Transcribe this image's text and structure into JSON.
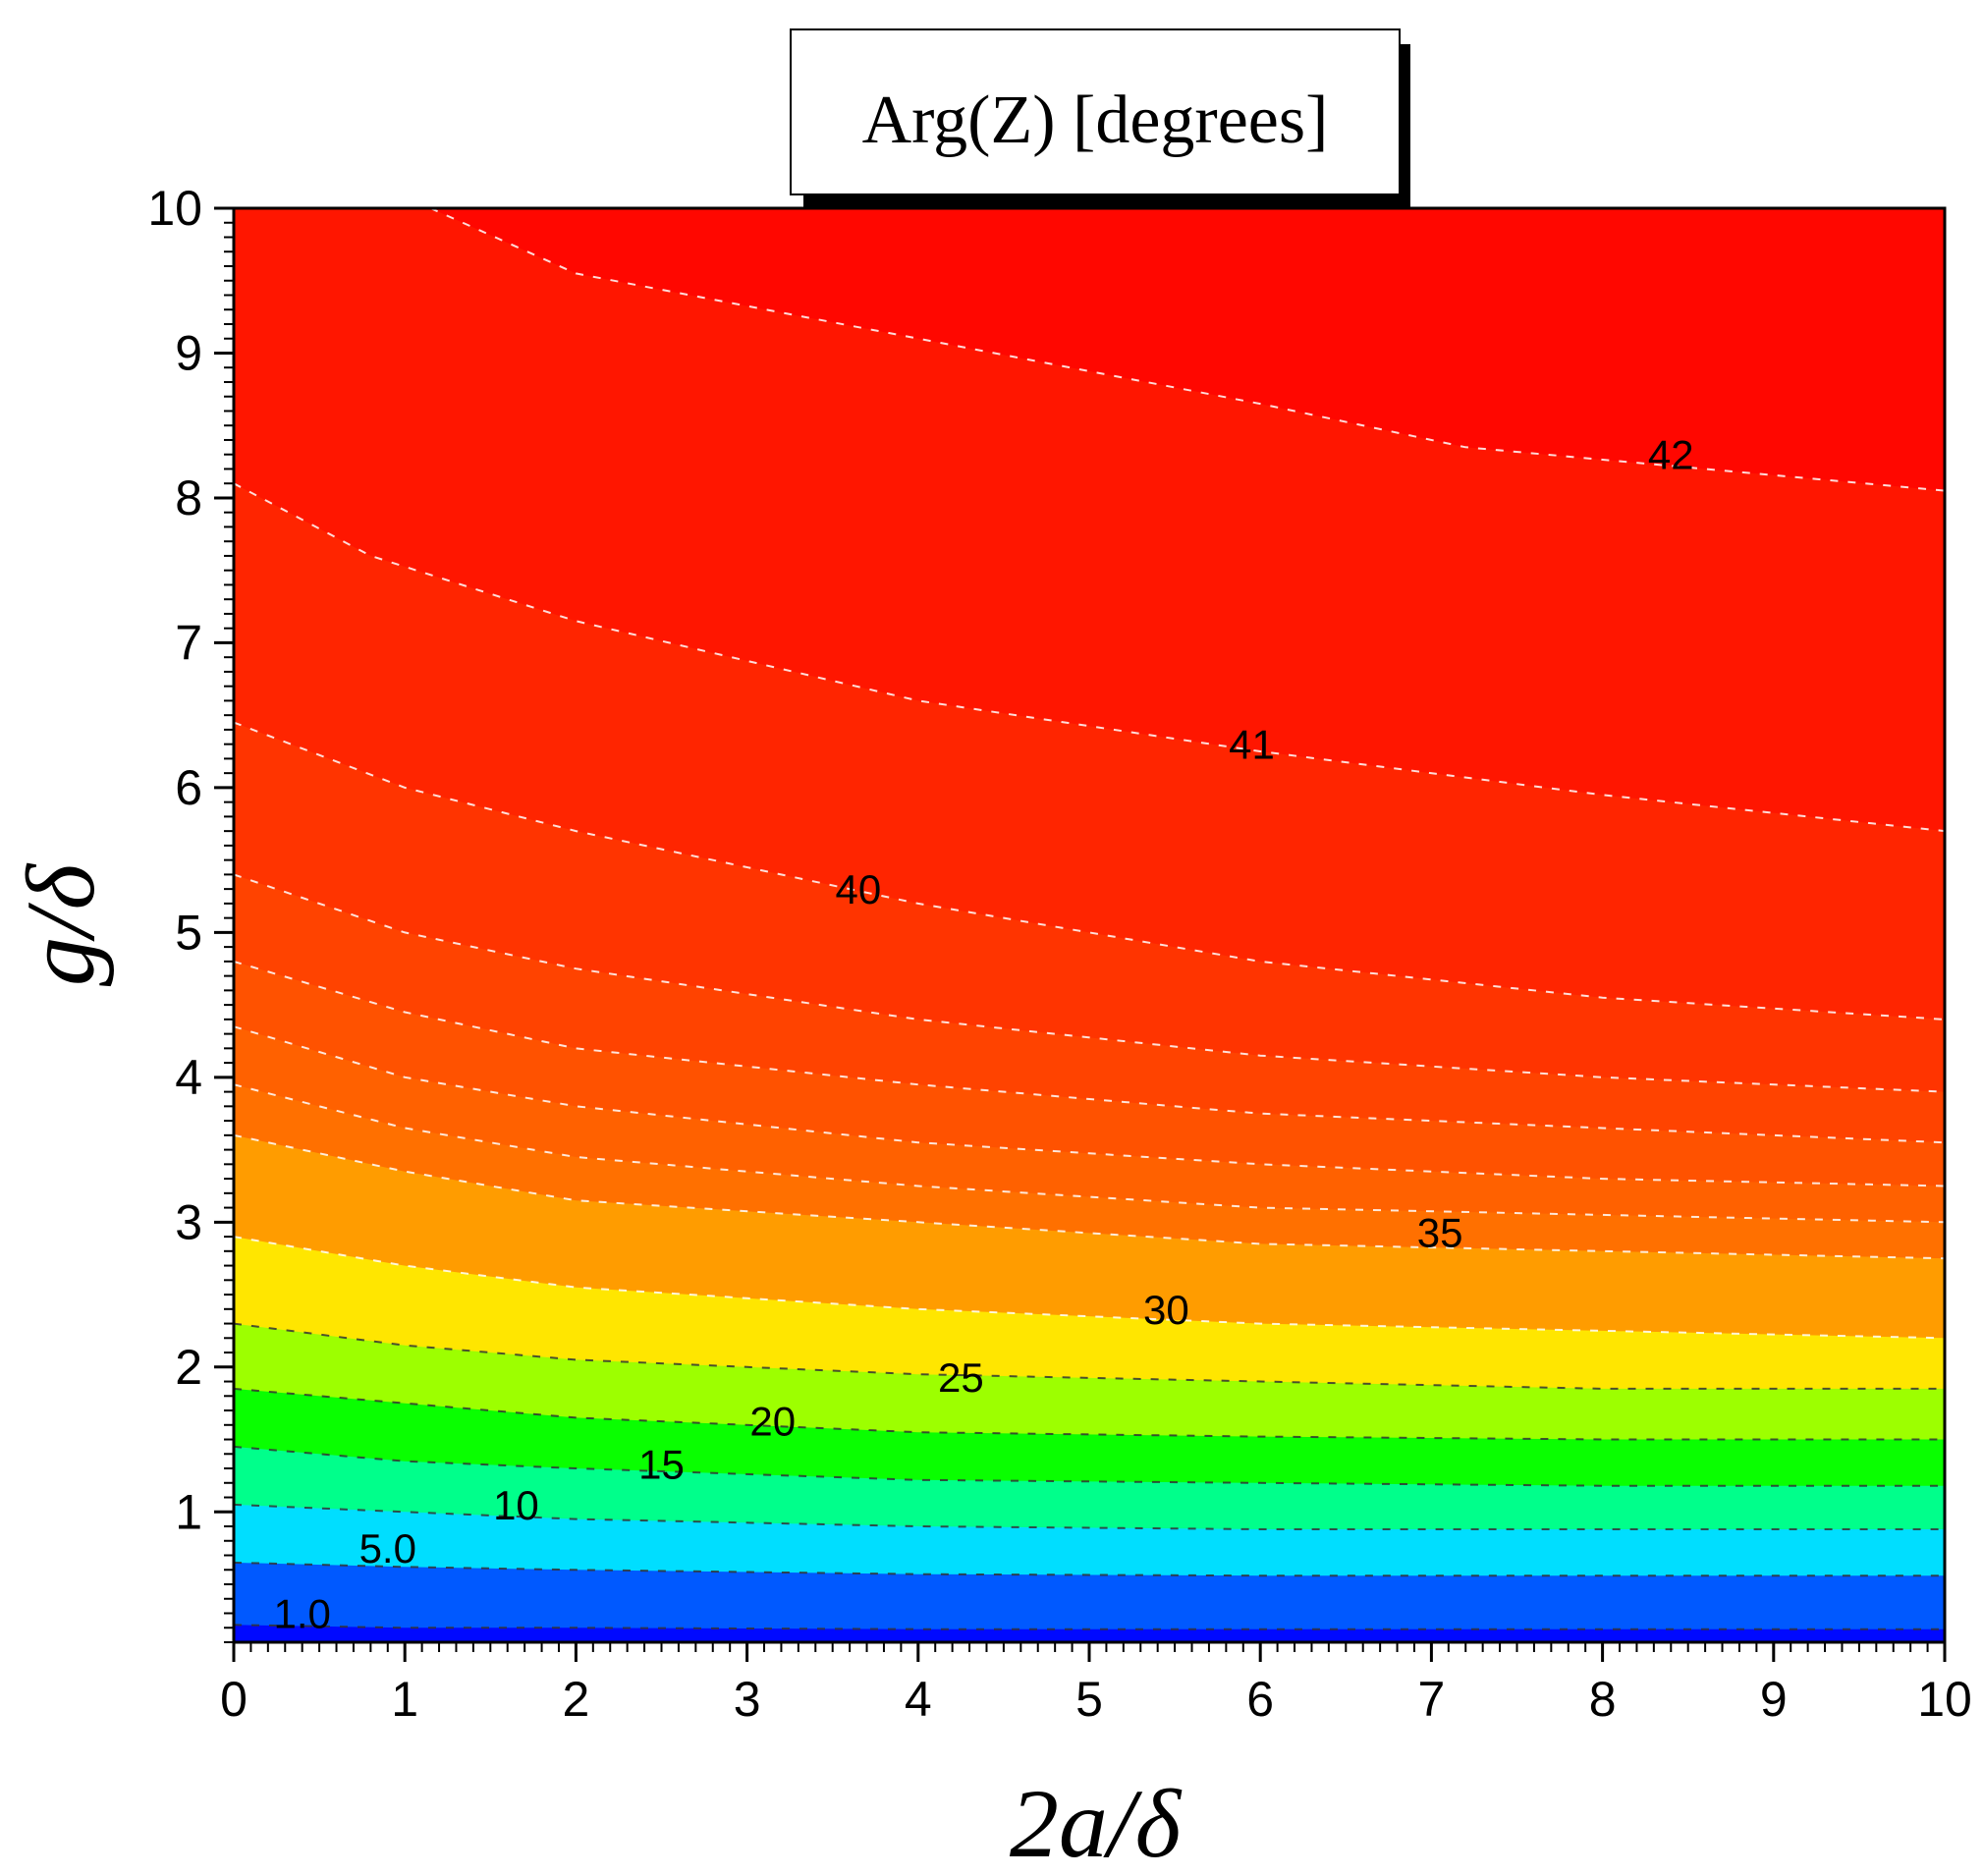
{
  "chart_data": {
    "type": "heatmap",
    "title": "Arg(Z) [degrees]",
    "xlabel": "2a/δ",
    "ylabel": "g/δ",
    "xlim": [
      0,
      10
    ],
    "ylim": [
      0.1,
      10
    ],
    "x_ticks": [
      "0",
      "1",
      "2",
      "3",
      "4",
      "5",
      "6",
      "7",
      "8",
      "9",
      "10"
    ],
    "y_ticks": [
      "1",
      "2",
      "3",
      "4",
      "5",
      "6",
      "7",
      "8",
      "9",
      "10"
    ],
    "colormap": [
      "#0000ff",
      "#00ffff",
      "#00ff00",
      "#ffff00",
      "#ff8000",
      "#ff0000"
    ],
    "value_range": [
      0,
      43
    ],
    "contour_labels": [
      {
        "text": "1.0",
        "x": 0.4,
        "y": 0.3
      },
      {
        "text": "5.0",
        "x": 0.9,
        "y": 0.75
      },
      {
        "text": "10",
        "x": 1.65,
        "y": 1.05
      },
      {
        "text": "15",
        "x": 2.5,
        "y": 1.33
      },
      {
        "text": "20",
        "x": 3.15,
        "y": 1.63
      },
      {
        "text": "25",
        "x": 4.25,
        "y": 1.93
      },
      {
        "text": "30",
        "x": 5.45,
        "y": 2.4
      },
      {
        "text": "35",
        "x": 7.05,
        "y": 2.93
      },
      {
        "text": "40",
        "x": 3.65,
        "y": 5.3
      },
      {
        "text": "41",
        "x": 5.95,
        "y": 6.3
      },
      {
        "text": "42",
        "x": 8.4,
        "y": 8.3
      }
    ],
    "contour_lines": [
      {
        "value": 42,
        "points": [
          [
            1.15,
            10
          ],
          [
            2.0,
            9.55
          ],
          [
            4.0,
            9.1
          ],
          [
            6.0,
            8.65
          ],
          [
            7.2,
            8.35
          ],
          [
            10.0,
            8.05
          ]
        ]
      },
      {
        "value": 41,
        "points": [
          [
            0,
            8.1
          ],
          [
            0.8,
            7.6
          ],
          [
            2.0,
            7.15
          ],
          [
            4.0,
            6.6
          ],
          [
            6.0,
            6.25
          ],
          [
            8.0,
            5.95
          ],
          [
            10.0,
            5.7
          ]
        ]
      },
      {
        "value": 40,
        "points": [
          [
            0,
            6.45
          ],
          [
            1.0,
            6.0
          ],
          [
            2.0,
            5.7
          ],
          [
            4.0,
            5.2
          ],
          [
            6.0,
            4.8
          ],
          [
            8.0,
            4.55
          ],
          [
            10.0,
            4.4
          ]
        ]
      },
      {
        "value": 39,
        "points": [
          [
            0,
            5.4
          ],
          [
            1.0,
            5.0
          ],
          [
            2.0,
            4.75
          ],
          [
            4.0,
            4.4
          ],
          [
            6.0,
            4.15
          ],
          [
            8.0,
            4.0
          ],
          [
            10.0,
            3.9
          ]
        ]
      },
      {
        "value": 38,
        "points": [
          [
            0,
            4.8
          ],
          [
            1.0,
            4.45
          ],
          [
            2.0,
            4.2
          ],
          [
            4.0,
            3.95
          ],
          [
            6.0,
            3.75
          ],
          [
            8.0,
            3.65
          ],
          [
            10.0,
            3.55
          ]
        ]
      },
      {
        "value": 37,
        "points": [
          [
            0,
            4.35
          ],
          [
            1.0,
            4.0
          ],
          [
            2.0,
            3.8
          ],
          [
            4.0,
            3.55
          ],
          [
            6.0,
            3.4
          ],
          [
            8.0,
            3.3
          ],
          [
            10.0,
            3.25
          ]
        ]
      },
      {
        "value": 36,
        "points": [
          [
            0,
            3.95
          ],
          [
            1.0,
            3.65
          ],
          [
            2.0,
            3.45
          ],
          [
            4.0,
            3.25
          ],
          [
            6.0,
            3.1
          ],
          [
            8.0,
            3.05
          ],
          [
            10.0,
            3.0
          ]
        ]
      },
      {
        "value": 35,
        "points": [
          [
            0,
            3.6
          ],
          [
            1.0,
            3.35
          ],
          [
            2.0,
            3.15
          ],
          [
            4.0,
            3.0
          ],
          [
            6.0,
            2.85
          ],
          [
            8.0,
            2.8
          ],
          [
            10.0,
            2.75
          ]
        ]
      },
      {
        "value": 30,
        "points": [
          [
            0,
            2.9
          ],
          [
            1.0,
            2.7
          ],
          [
            2.0,
            2.55
          ],
          [
            4.0,
            2.4
          ],
          [
            6.0,
            2.3
          ],
          [
            8.0,
            2.25
          ],
          [
            10.0,
            2.2
          ]
        ]
      },
      {
        "value": 25,
        "points": [
          [
            0,
            2.3
          ],
          [
            1.0,
            2.15
          ],
          [
            2.0,
            2.05
          ],
          [
            4.0,
            1.95
          ],
          [
            6.0,
            1.9
          ],
          [
            8.0,
            1.85
          ],
          [
            10.0,
            1.85
          ]
        ]
      },
      {
        "value": 20,
        "points": [
          [
            0,
            1.85
          ],
          [
            1.0,
            1.75
          ],
          [
            2.0,
            1.65
          ],
          [
            4.0,
            1.55
          ],
          [
            6.0,
            1.52
          ],
          [
            8.0,
            1.5
          ],
          [
            10.0,
            1.5
          ]
        ]
      },
      {
        "value": 15,
        "points": [
          [
            0,
            1.45
          ],
          [
            1.0,
            1.35
          ],
          [
            2.0,
            1.3
          ],
          [
            4.0,
            1.22
          ],
          [
            6.0,
            1.2
          ],
          [
            8.0,
            1.18
          ],
          [
            10.0,
            1.18
          ]
        ]
      },
      {
        "value": 10,
        "points": [
          [
            0,
            1.05
          ],
          [
            1.0,
            1.0
          ],
          [
            2.0,
            0.95
          ],
          [
            4.0,
            0.9
          ],
          [
            6.0,
            0.88
          ],
          [
            8.0,
            0.88
          ],
          [
            10.0,
            0.88
          ]
        ]
      },
      {
        "value": 5,
        "points": [
          [
            0,
            0.65
          ],
          [
            1.0,
            0.62
          ],
          [
            2.0,
            0.6
          ],
          [
            4.0,
            0.57
          ],
          [
            6.0,
            0.56
          ],
          [
            8.0,
            0.56
          ],
          [
            10.0,
            0.56
          ]
        ]
      },
      {
        "value": 1,
        "points": [
          [
            0,
            0.22
          ],
          [
            1.0,
            0.2
          ],
          [
            2.0,
            0.2
          ],
          [
            4.0,
            0.19
          ],
          [
            6.0,
            0.19
          ],
          [
            8.0,
            0.19
          ],
          [
            10.0,
            0.19
          ]
        ]
      }
    ]
  }
}
